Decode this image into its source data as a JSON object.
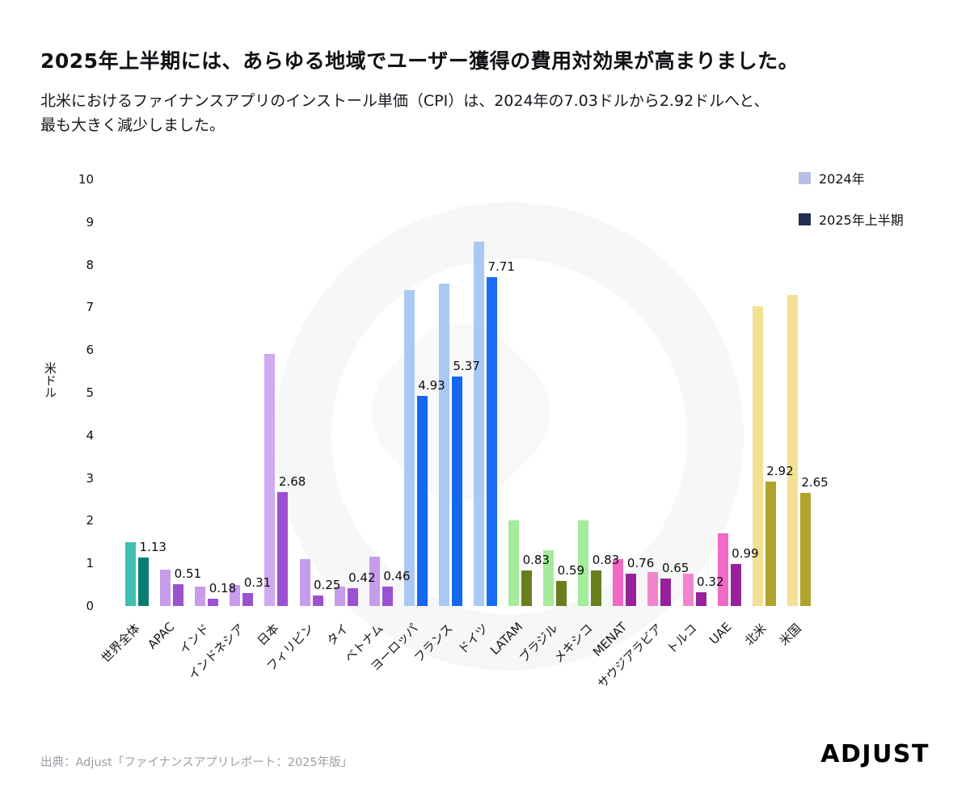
{
  "header": {
    "title": "2025年上半期には、あらゆる地域でユーザー獲得の費用対効果が高まりました。",
    "subtitle_line1": "北米におけるファイナンスアプリのインストール単価（CPI）は、2024年の7.03ドルから2.92ドルへと、",
    "subtitle_line2": "最も大きく減少しました。"
  },
  "legend": {
    "items": [
      {
        "label": "2024年",
        "color": "#b6c0e6"
      },
      {
        "label": "2025年上半期",
        "color": "#222e52"
      }
    ]
  },
  "chart_data": {
    "type": "bar",
    "title": "",
    "xlabel": "",
    "ylabel": "米ドル",
    "ylim": [
      0,
      10
    ],
    "yticks": [
      0,
      1,
      2,
      3,
      4,
      5,
      6,
      7,
      8,
      9,
      10
    ],
    "grid": false,
    "legend_position": "top-right",
    "categories": [
      "世界全体",
      "APAC",
      "インド",
      "インドネシア",
      "日本",
      "フィリピン",
      "タイ",
      "ベトナム",
      "ヨーロッパ",
      "フランス",
      "ドイツ",
      "LATAM",
      "ブラジル",
      "メキシコ",
      "MENAT",
      "サウジアラビア",
      "トルコ",
      "UAE",
      "北米",
      "米国"
    ],
    "series": [
      {
        "name": "2024",
        "values": [
          1.5,
          0.85,
          0.45,
          0.5,
          5.9,
          1.1,
          0.45,
          1.15,
          7.4,
          7.55,
          8.55,
          2.0,
          1.3,
          2.0,
          1.1,
          0.8,
          0.75,
          1.7,
          7.03,
          7.3
        ],
        "labels": [
          "",
          "",
          "",
          "",
          "",
          "",
          "",
          "",
          "",
          "",
          "",
          "",
          "",
          "",
          "",
          "",
          "",
          "",
          "",
          ""
        ]
      },
      {
        "name": "2025H1",
        "values": [
          1.13,
          0.51,
          0.18,
          0.31,
          2.68,
          0.25,
          0.42,
          0.46,
          4.93,
          5.37,
          7.71,
          0.83,
          0.59,
          0.83,
          0.76,
          0.65,
          0.32,
          0.99,
          2.92,
          2.65
        ],
        "labels": [
          "1.13",
          "0.51",
          "0.18",
          "0.31",
          "2.68",
          "0.25",
          "0.42",
          "0.46",
          "4.93",
          "5.37",
          "7.71",
          "0.83",
          "0.59",
          "0.83",
          "0.76",
          "0.65",
          "0.32",
          "0.99",
          "2.92",
          "2.65"
        ]
      }
    ],
    "bar_colors": [
      {
        "y2024": "#3fbfb1",
        "y2025": "#0a7c70"
      },
      {
        "y2024": "#c79ceb",
        "y2025": "#9b51d0"
      },
      {
        "y2024": "#c79ceb",
        "y2025": "#9b51d0"
      },
      {
        "y2024": "#c79ceb",
        "y2025": "#9b51d0"
      },
      {
        "y2024": "#d1a9f0",
        "y2025": "#9b51d0"
      },
      {
        "y2024": "#c79ceb",
        "y2025": "#9b51d0"
      },
      {
        "y2024": "#c79ceb",
        "y2025": "#9b51d0"
      },
      {
        "y2024": "#c79ceb",
        "y2025": "#9b51d0"
      },
      {
        "y2024": "#a9c9f3",
        "y2025": "#1467ef"
      },
      {
        "y2024": "#a9c9f3",
        "y2025": "#1467ef"
      },
      {
        "y2024": "#a9c9f3",
        "y2025": "#1a6cf5"
      },
      {
        "y2024": "#a4eb9b",
        "y2025": "#697e1f"
      },
      {
        "y2024": "#a4eb9b",
        "y2025": "#697e1f"
      },
      {
        "y2024": "#a4eb9b",
        "y2025": "#697e1f"
      },
      {
        "y2024": "#ef6ac5",
        "y2025": "#97219a"
      },
      {
        "y2024": "#ef85cd",
        "y2025": "#97219a"
      },
      {
        "y2024": "#ef85cd",
        "y2025": "#97219a"
      },
      {
        "y2024": "#ef6ac5",
        "y2025": "#97219a"
      },
      {
        "y2024": "#f2e095",
        "y2025": "#b2a32e"
      },
      {
        "y2024": "#f2e095",
        "y2025": "#b2a32e"
      }
    ]
  },
  "footer": {
    "source": "出典：Adjust「ファイナンスアプリレポート：2025年版」",
    "logo": "ADJUST"
  }
}
